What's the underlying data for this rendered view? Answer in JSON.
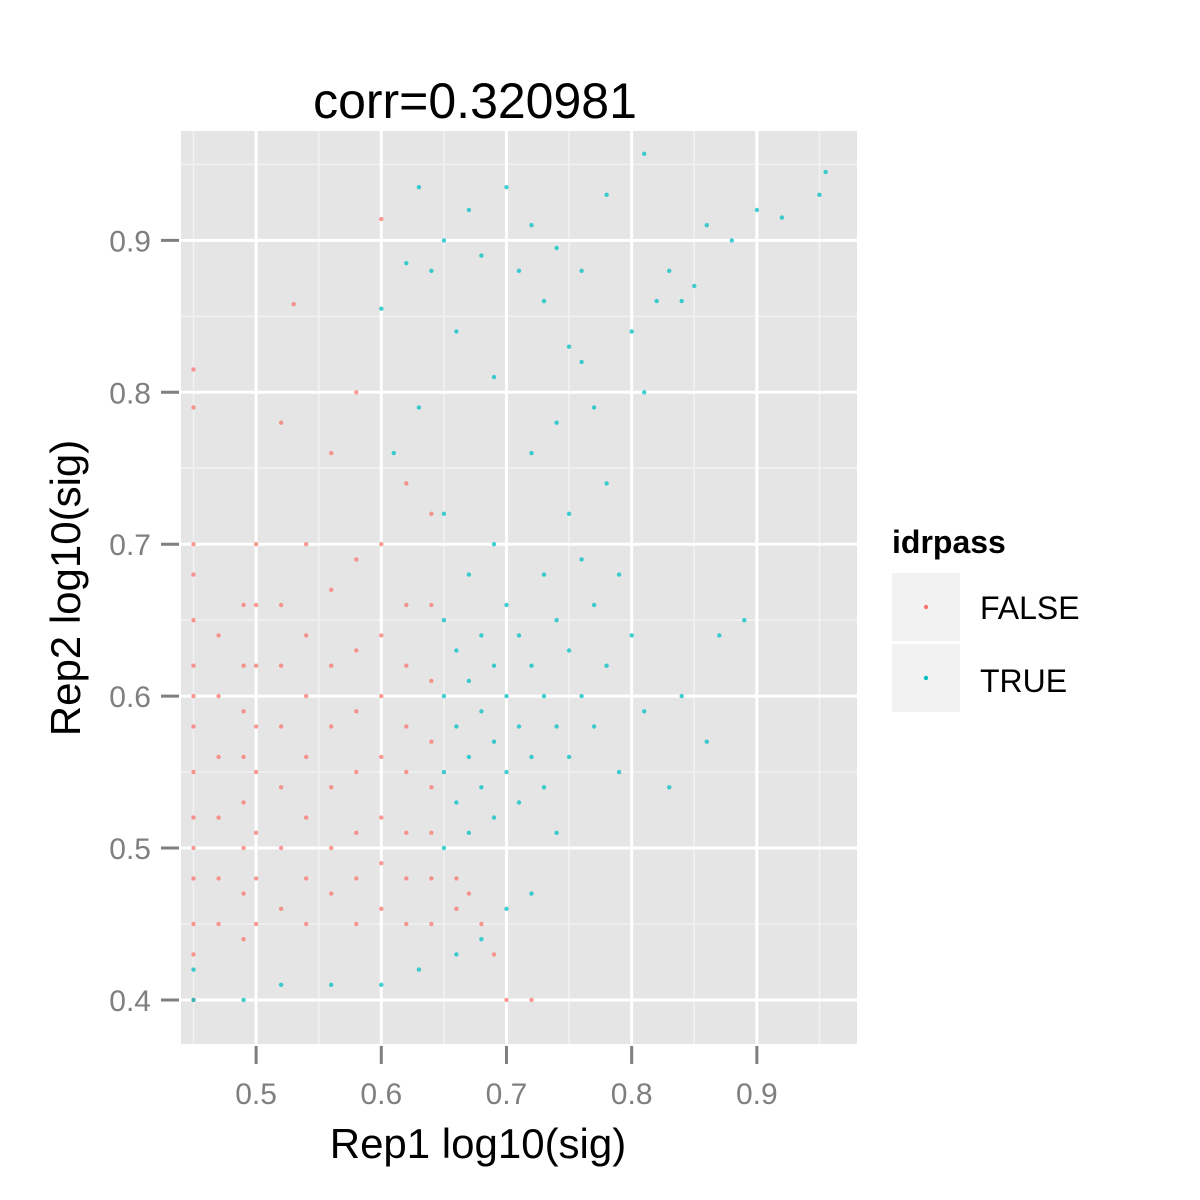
{
  "chart_data": {
    "type": "scatter",
    "title": "corr=0.320981",
    "xlabel": "Rep1 log10(sig)",
    "ylabel": "Rep2 log10(sig)",
    "xlim": [
      0.44,
      0.98
    ],
    "ylim": [
      0.371,
      0.972
    ],
    "x_ticks": [
      0.5,
      0.6,
      0.7,
      0.8,
      0.9
    ],
    "y_ticks": [
      0.4,
      0.5,
      0.6,
      0.7,
      0.8,
      0.9
    ],
    "x_tick_labels": [
      "0.5",
      "0.6",
      "0.7",
      "0.8",
      "0.9"
    ],
    "y_tick_labels": [
      "0.4",
      "0.5",
      "0.6",
      "0.7",
      "0.8",
      "0.9"
    ],
    "grid": true,
    "legend": {
      "title": "idrpass",
      "position": "right",
      "entries": [
        {
          "label": "FALSE",
          "color": "#f8766d"
        },
        {
          "label": "TRUE",
          "color": "#00bfc4"
        }
      ]
    },
    "series": [
      {
        "name": "FALSE",
        "color": "#f8766d",
        "points": [
          [
            0.45,
            0.4
          ],
          [
            0.45,
            0.43
          ],
          [
            0.45,
            0.45
          ],
          [
            0.45,
            0.48
          ],
          [
            0.45,
            0.5
          ],
          [
            0.45,
            0.52
          ],
          [
            0.45,
            0.55
          ],
          [
            0.45,
            0.58
          ],
          [
            0.45,
            0.6
          ],
          [
            0.45,
            0.62
          ],
          [
            0.45,
            0.65
          ],
          [
            0.45,
            0.68
          ],
          [
            0.45,
            0.7
          ],
          [
            0.45,
            0.79
          ],
          [
            0.45,
            0.815
          ],
          [
            0.47,
            0.45
          ],
          [
            0.47,
            0.48
          ],
          [
            0.47,
            0.52
          ],
          [
            0.47,
            0.56
          ],
          [
            0.47,
            0.6
          ],
          [
            0.47,
            0.64
          ],
          [
            0.49,
            0.44
          ],
          [
            0.49,
            0.47
          ],
          [
            0.49,
            0.5
          ],
          [
            0.49,
            0.53
          ],
          [
            0.49,
            0.56
          ],
          [
            0.49,
            0.59
          ],
          [
            0.49,
            0.62
          ],
          [
            0.49,
            0.66
          ],
          [
            0.5,
            0.45
          ],
          [
            0.5,
            0.48
          ],
          [
            0.5,
            0.51
          ],
          [
            0.5,
            0.55
          ],
          [
            0.5,
            0.58
          ],
          [
            0.5,
            0.62
          ],
          [
            0.5,
            0.66
          ],
          [
            0.5,
            0.7
          ],
          [
            0.52,
            0.46
          ],
          [
            0.52,
            0.5
          ],
          [
            0.52,
            0.54
          ],
          [
            0.52,
            0.58
          ],
          [
            0.52,
            0.62
          ],
          [
            0.52,
            0.66
          ],
          [
            0.52,
            0.78
          ],
          [
            0.53,
            0.858
          ],
          [
            0.54,
            0.45
          ],
          [
            0.54,
            0.48
          ],
          [
            0.54,
            0.52
          ],
          [
            0.54,
            0.56
          ],
          [
            0.54,
            0.6
          ],
          [
            0.54,
            0.64
          ],
          [
            0.54,
            0.7
          ],
          [
            0.56,
            0.47
          ],
          [
            0.56,
            0.5
          ],
          [
            0.56,
            0.54
          ],
          [
            0.56,
            0.58
          ],
          [
            0.56,
            0.62
          ],
          [
            0.56,
            0.67
          ],
          [
            0.56,
            0.76
          ],
          [
            0.58,
            0.45
          ],
          [
            0.58,
            0.48
          ],
          [
            0.58,
            0.51
          ],
          [
            0.58,
            0.55
          ],
          [
            0.58,
            0.59
          ],
          [
            0.58,
            0.63
          ],
          [
            0.58,
            0.69
          ],
          [
            0.58,
            0.8
          ],
          [
            0.6,
            0.46
          ],
          [
            0.6,
            0.49
          ],
          [
            0.6,
            0.52
          ],
          [
            0.6,
            0.56
          ],
          [
            0.6,
            0.6
          ],
          [
            0.6,
            0.64
          ],
          [
            0.6,
            0.7
          ],
          [
            0.6,
            0.914
          ],
          [
            0.62,
            0.45
          ],
          [
            0.62,
            0.48
          ],
          [
            0.62,
            0.51
          ],
          [
            0.62,
            0.55
          ],
          [
            0.62,
            0.58
          ],
          [
            0.62,
            0.62
          ],
          [
            0.62,
            0.66
          ],
          [
            0.62,
            0.74
          ],
          [
            0.64,
            0.45
          ],
          [
            0.64,
            0.48
          ],
          [
            0.64,
            0.51
          ],
          [
            0.64,
            0.54
          ],
          [
            0.64,
            0.57
          ],
          [
            0.64,
            0.61
          ],
          [
            0.64,
            0.66
          ],
          [
            0.64,
            0.72
          ],
          [
            0.66,
            0.46
          ],
          [
            0.66,
            0.48
          ],
          [
            0.67,
            0.47
          ],
          [
            0.68,
            0.45
          ],
          [
            0.69,
            0.43
          ],
          [
            0.7,
            0.4
          ],
          [
            0.72,
            0.4
          ]
        ]
      },
      {
        "name": "TRUE",
        "color": "#00bfc4",
        "points": [
          [
            0.45,
            0.4
          ],
          [
            0.45,
            0.42
          ],
          [
            0.49,
            0.4
          ],
          [
            0.52,
            0.41
          ],
          [
            0.56,
            0.41
          ],
          [
            0.6,
            0.41
          ],
          [
            0.63,
            0.42
          ],
          [
            0.66,
            0.43
          ],
          [
            0.68,
            0.44
          ],
          [
            0.7,
            0.46
          ],
          [
            0.65,
            0.5
          ],
          [
            0.65,
            0.55
          ],
          [
            0.65,
            0.6
          ],
          [
            0.65,
            0.65
          ],
          [
            0.65,
            0.72
          ],
          [
            0.66,
            0.53
          ],
          [
            0.66,
            0.58
          ],
          [
            0.66,
            0.63
          ],
          [
            0.67,
            0.51
          ],
          [
            0.67,
            0.56
          ],
          [
            0.67,
            0.61
          ],
          [
            0.67,
            0.68
          ],
          [
            0.68,
            0.54
          ],
          [
            0.68,
            0.59
          ],
          [
            0.68,
            0.64
          ],
          [
            0.69,
            0.52
          ],
          [
            0.69,
            0.57
          ],
          [
            0.69,
            0.62
          ],
          [
            0.69,
            0.7
          ],
          [
            0.7,
            0.55
          ],
          [
            0.7,
            0.6
          ],
          [
            0.7,
            0.66
          ],
          [
            0.71,
            0.53
          ],
          [
            0.71,
            0.58
          ],
          [
            0.71,
            0.64
          ],
          [
            0.72,
            0.47
          ],
          [
            0.72,
            0.56
          ],
          [
            0.72,
            0.62
          ],
          [
            0.72,
            0.76
          ],
          [
            0.73,
            0.54
          ],
          [
            0.73,
            0.6
          ],
          [
            0.73,
            0.68
          ],
          [
            0.74,
            0.51
          ],
          [
            0.74,
            0.58
          ],
          [
            0.74,
            0.65
          ],
          [
            0.74,
            0.78
          ],
          [
            0.75,
            0.56
          ],
          [
            0.75,
            0.63
          ],
          [
            0.75,
            0.72
          ],
          [
            0.76,
            0.6
          ],
          [
            0.76,
            0.69
          ],
          [
            0.76,
            0.82
          ],
          [
            0.77,
            0.58
          ],
          [
            0.77,
            0.66
          ],
          [
            0.77,
            0.79
          ],
          [
            0.78,
            0.62
          ],
          [
            0.78,
            0.74
          ],
          [
            0.79,
            0.55
          ],
          [
            0.79,
            0.68
          ],
          [
            0.8,
            0.64
          ],
          [
            0.8,
            0.84
          ],
          [
            0.81,
            0.59
          ],
          [
            0.81,
            0.8
          ],
          [
            0.82,
            0.86
          ],
          [
            0.83,
            0.54
          ],
          [
            0.83,
            0.88
          ],
          [
            0.84,
            0.6
          ],
          [
            0.84,
            0.86
          ],
          [
            0.85,
            0.87
          ],
          [
            0.86,
            0.57
          ],
          [
            0.86,
            0.91
          ],
          [
            0.87,
            0.64
          ],
          [
            0.88,
            0.9
          ],
          [
            0.89,
            0.65
          ],
          [
            0.9,
            0.92
          ],
          [
            0.92,
            0.915
          ],
          [
            0.95,
            0.93
          ],
          [
            0.955,
            0.945
          ],
          [
            0.81,
            0.957
          ],
          [
            0.7,
            0.935
          ],
          [
            0.6,
            0.855
          ],
          [
            0.62,
            0.885
          ],
          [
            0.64,
            0.88
          ],
          [
            0.65,
            0.9
          ],
          [
            0.68,
            0.89
          ],
          [
            0.71,
            0.88
          ],
          [
            0.72,
            0.91
          ],
          [
            0.74,
            0.895
          ],
          [
            0.76,
            0.88
          ],
          [
            0.78,
            0.93
          ],
          [
            0.63,
            0.935
          ],
          [
            0.67,
            0.92
          ],
          [
            0.69,
            0.81
          ],
          [
            0.61,
            0.76
          ],
          [
            0.63,
            0.79
          ],
          [
            0.66,
            0.84
          ],
          [
            0.73,
            0.86
          ],
          [
            0.75,
            0.83
          ]
        ]
      }
    ]
  }
}
